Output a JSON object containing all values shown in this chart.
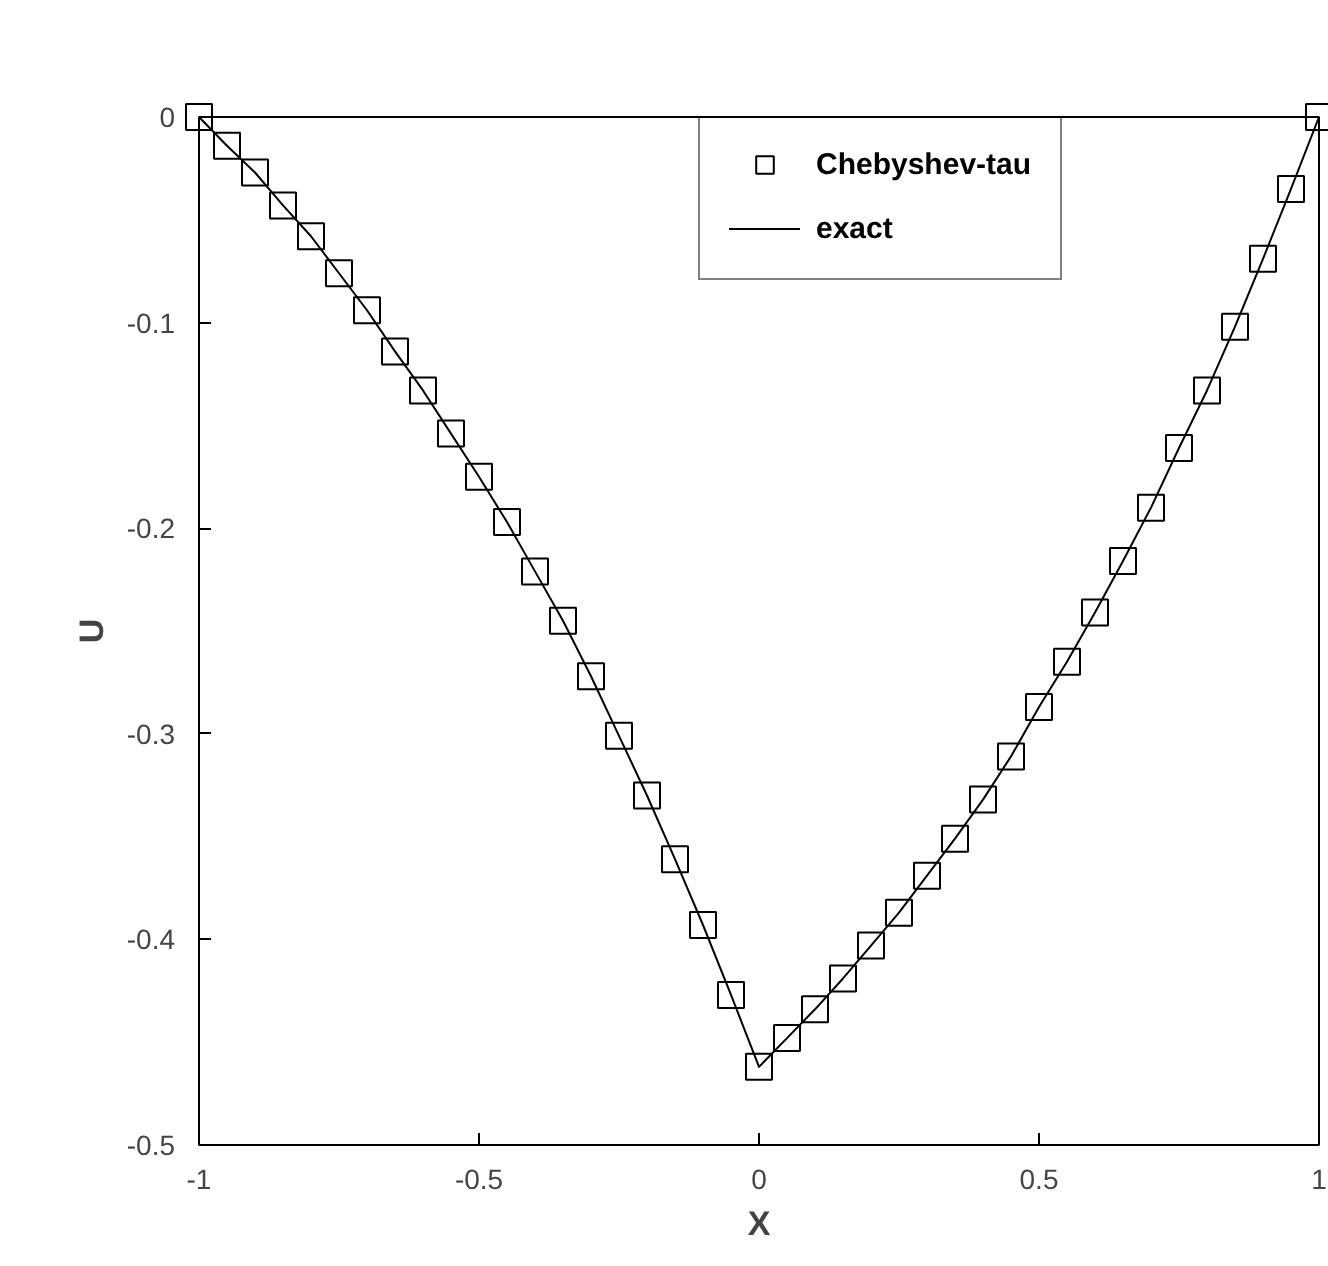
{
  "chart_data": {
    "type": "scatter",
    "xlabel": "X",
    "ylabel": "U",
    "xlim": [
      -1,
      1
    ],
    "ylim": [
      -0.5,
      0
    ],
    "xticks": [
      -1,
      -0.5,
      0,
      0.5,
      1
    ],
    "yticks": [
      -0.5,
      -0.4,
      -0.3,
      -0.2,
      -0.1,
      0
    ],
    "x": [
      -1,
      -0.95,
      -0.9,
      -0.85,
      -0.8,
      -0.75,
      -0.7,
      -0.65,
      -0.6,
      -0.55,
      -0.5,
      -0.45,
      -0.4,
      -0.35,
      -0.3,
      -0.25,
      -0.2,
      -0.15,
      -0.1,
      -0.05,
      0,
      0.05,
      0.1,
      0.15,
      0.2,
      0.25,
      0.3,
      0.35,
      0.4,
      0.45,
      0.5,
      0.55,
      0.6,
      0.65,
      0.7,
      0.75,
      0.8,
      0.85,
      0.9,
      0.95,
      1
    ],
    "series": [
      {
        "name": "Chebyshev-tau",
        "marker": "square",
        "color": "#000000",
        "values": [
          0,
          -0.014,
          -0.027,
          -0.043,
          -0.058,
          -0.076,
          -0.094,
          -0.114,
          -0.133,
          -0.154,
          -0.175,
          -0.197,
          -0.221,
          -0.245,
          -0.272,
          -0.301,
          -0.33,
          -0.361,
          -0.393,
          -0.427,
          -0.462,
          -0.448,
          -0.434,
          -0.419,
          -0.403,
          -0.387,
          -0.369,
          -0.351,
          -0.332,
          -0.311,
          -0.287,
          -0.265,
          -0.241,
          -0.216,
          -0.19,
          -0.161,
          -0.133,
          -0.102,
          -0.069,
          -0.035,
          0
        ]
      },
      {
        "name": "exact",
        "type": "line",
        "line_style": "solid",
        "color": "#000000",
        "values": [
          0,
          -0.014,
          -0.027,
          -0.043,
          -0.058,
          -0.076,
          -0.094,
          -0.114,
          -0.133,
          -0.154,
          -0.175,
          -0.197,
          -0.221,
          -0.245,
          -0.272,
          -0.301,
          -0.33,
          -0.361,
          -0.393,
          -0.427,
          -0.462,
          -0.448,
          -0.434,
          -0.419,
          -0.403,
          -0.387,
          -0.369,
          -0.351,
          -0.332,
          -0.311,
          -0.287,
          -0.265,
          -0.241,
          -0.216,
          -0.19,
          -0.161,
          -0.133,
          -0.102,
          -0.069,
          -0.035,
          0
        ]
      }
    ],
    "legend": "top right",
    "grid": false
  }
}
